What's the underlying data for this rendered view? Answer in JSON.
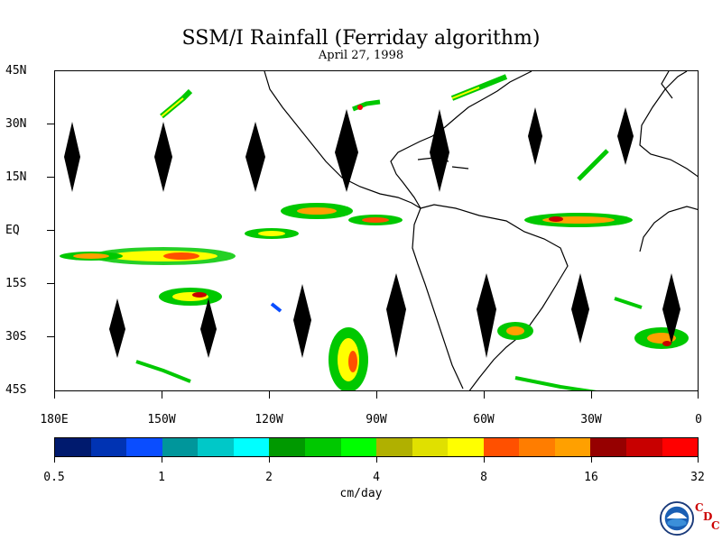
{
  "figure": {
    "title": "SSM/I Rainfall (Ferriday algorithm)",
    "date": "April 27, 1998"
  },
  "map": {
    "projection": "equirectangular",
    "lon_range": [
      -180,
      0
    ],
    "lat_range": [
      -45,
      45
    ],
    "lat_labels": [
      "45N",
      "30N",
      "15N",
      "EQ",
      "15S",
      "30S",
      "45S"
    ],
    "lat_values": [
      45,
      30,
      15,
      0,
      -15,
      -30,
      -45
    ],
    "lon_labels": [
      "180E",
      "150W",
      "120W",
      "90W",
      "60W",
      "30W",
      "0"
    ],
    "lon_values": [
      -180,
      -150,
      -120,
      -90,
      -60,
      -30,
      0
    ],
    "missing_data_symbol": "black-diamond"
  },
  "colorbar": {
    "units": "cm/day",
    "tick_labels": [
      "0.5",
      "1",
      "2",
      "4",
      "8",
      "16",
      "32"
    ],
    "colors": [
      "#001a6e",
      "#0033b3",
      "#0a4dff",
      "#00969b",
      "#00c8c8",
      "#00ffff",
      "#009900",
      "#00c800",
      "#00ff00",
      "#b0b000",
      "#e0e000",
      "#ffff00",
      "#ff5000",
      "#ff7d00",
      "#ffa000",
      "#960000",
      "#c80000",
      "#ff0000"
    ]
  },
  "logo": {
    "name": "noaa-logo",
    "text": "NOAA",
    "badge": [
      "C",
      "D",
      "C"
    ]
  }
}
